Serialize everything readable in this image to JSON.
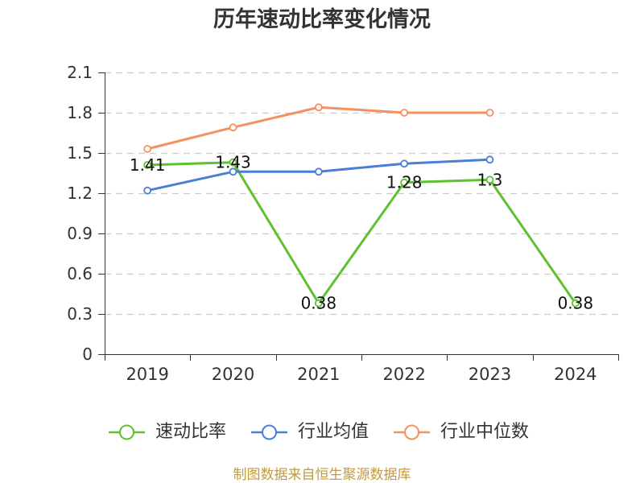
{
  "chart_data": {
    "type": "line",
    "title": "历年速动比率变化情况",
    "categories": [
      "2019",
      "2020",
      "2021",
      "2022",
      "2023",
      "2024"
    ],
    "yticks": [
      0,
      0.3,
      0.6,
      0.9,
      1.2,
      1.5,
      1.8,
      2.1
    ],
    "ylim": [
      0,
      2.1
    ],
    "xlabel": "",
    "ylabel": "",
    "grid": true,
    "legend_position": "bottom",
    "series": [
      {
        "name": "速动比率",
        "color": "#5ec12e",
        "values": [
          1.41,
          1.43,
          0.38,
          1.28,
          1.3,
          0.38
        ],
        "show_labels": true
      },
      {
        "name": "行业均值",
        "color": "#4b7fd5",
        "values": [
          1.22,
          1.36,
          1.36,
          1.42,
          1.45,
          null
        ],
        "show_labels": false
      },
      {
        "name": "行业中位数",
        "color": "#f6905e",
        "values": [
          1.53,
          1.69,
          1.84,
          1.8,
          1.8,
          null
        ],
        "show_labels": false
      }
    ]
  },
  "footer": {
    "source_text": "制图数据来自恒生聚源数据库"
  },
  "colors": {
    "axis": "#333333",
    "grid": "#cccccc",
    "footer": "#c49a3c",
    "label": "#111111"
  }
}
